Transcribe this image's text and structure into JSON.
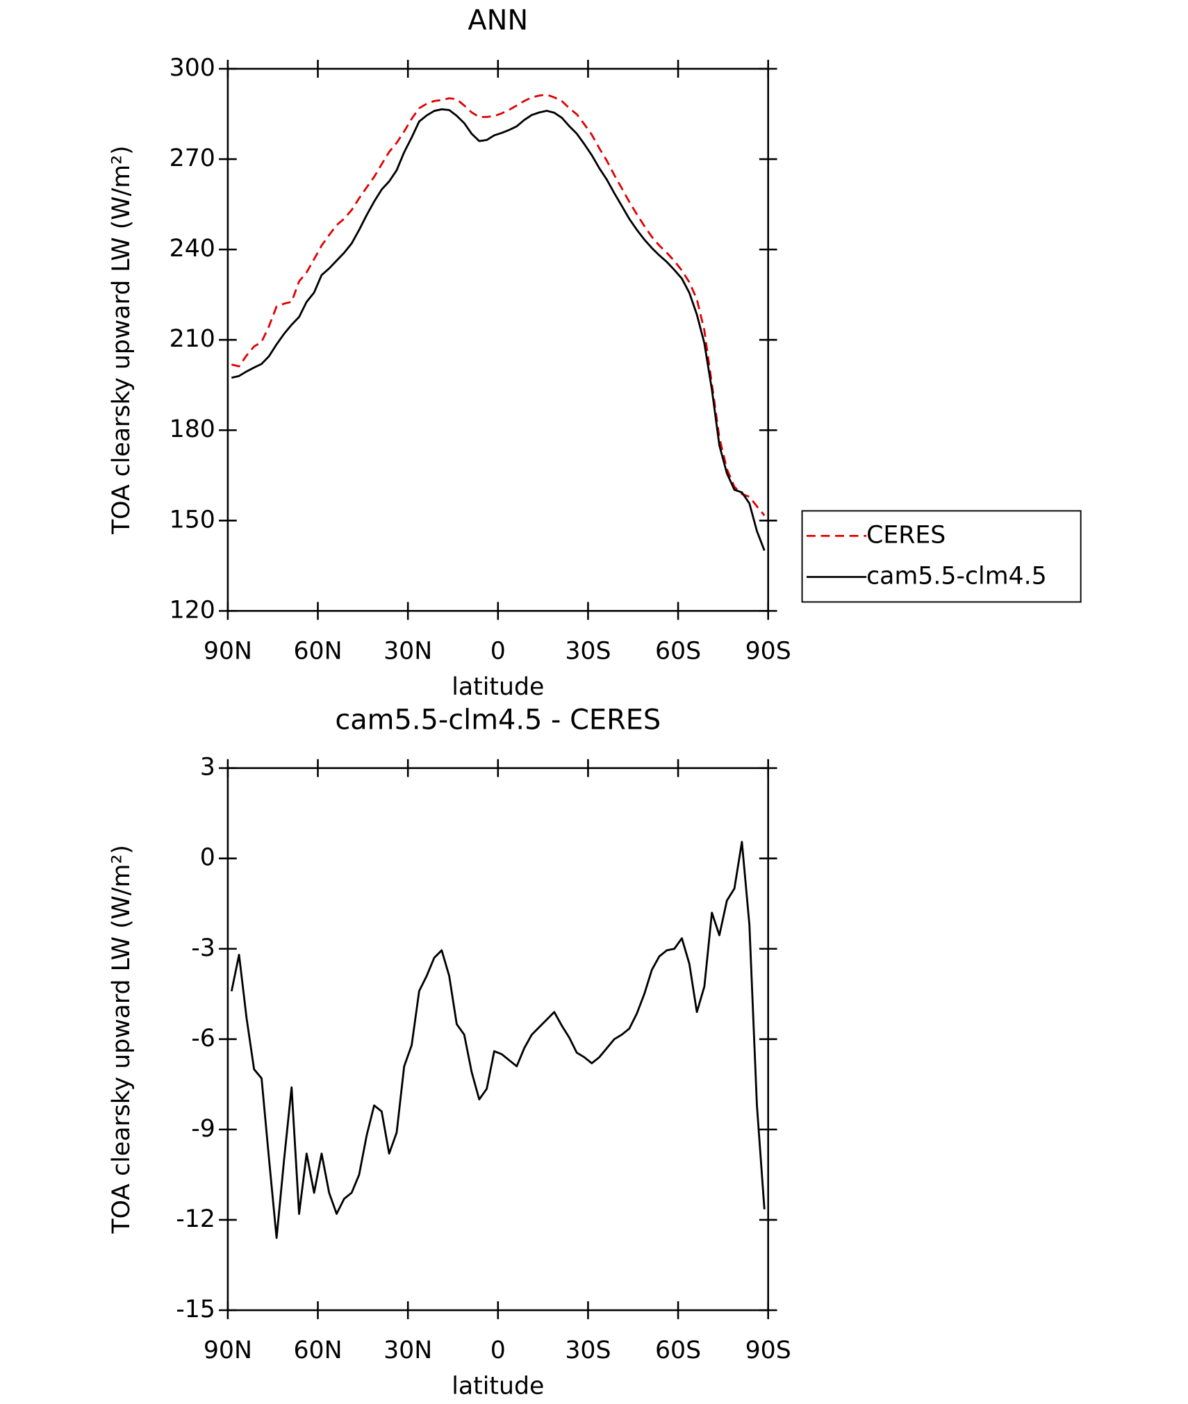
{
  "chart_data": [
    {
      "type": "line",
      "title": "ANN",
      "x_label": "latitude",
      "y_label": "TOA clearsky upward LW (W/m²)",
      "x": [
        88.75,
        86.25,
        83.75,
        81.25,
        78.75,
        76.25,
        73.75,
        71.25,
        68.75,
        66.25,
        63.75,
        61.25,
        58.75,
        56.25,
        53.75,
        51.25,
        48.75,
        46.25,
        43.75,
        41.25,
        38.75,
        36.25,
        33.75,
        31.25,
        28.75,
        26.25,
        23.75,
        21.25,
        18.75,
        16.25,
        13.75,
        11.25,
        8.75,
        6.25,
        3.75,
        1.25,
        -1.25,
        -3.75,
        -6.25,
        -8.75,
        -11.25,
        -13.75,
        -16.25,
        -18.75,
        -21.25,
        -23.75,
        -26.25,
        -28.75,
        -31.25,
        -33.75,
        -36.25,
        -38.75,
        -41.25,
        -43.75,
        -46.25,
        -48.75,
        -51.25,
        -53.75,
        -56.25,
        -58.75,
        -61.25,
        -63.75,
        -66.25,
        -68.75,
        -71.25,
        -73.75,
        -76.25,
        -78.75,
        -81.25,
        -83.75,
        -86.25,
        -88.75
      ],
      "xlim": [
        90,
        -90
      ],
      "xticks": [
        {
          "value": 90,
          "label": "90N"
        },
        {
          "value": 60,
          "label": "60N"
        },
        {
          "value": 30,
          "label": "30N"
        },
        0,
        {
          "value": -30,
          "label": "30S"
        },
        {
          "value": -60,
          "label": "60S"
        },
        {
          "value": -90,
          "label": "90S"
        }
      ],
      "ylim": [
        120,
        300
      ],
      "yticks": [
        120,
        150,
        180,
        210,
        240,
        270,
        300
      ],
      "legend": "right",
      "series": [
        {
          "name": "CERES",
          "color": "#e00000",
          "style": "dashed",
          "values": [
            201.8,
            201.2,
            204.8,
            207.8,
            209.3,
            214.6,
            221.1,
            222,
            222.6,
            229.4,
            232.4,
            236.8,
            241.3,
            244.8,
            248.1,
            250.2,
            253.1,
            257,
            260.6,
            264.1,
            268.3,
            272.4,
            275.4,
            279.2,
            283.4,
            286.9,
            288.4,
            289.3,
            289.6,
            290.2,
            289.9,
            287.8,
            285.5,
            284,
            284,
            284.3,
            285.2,
            286.4,
            287.8,
            289.3,
            290.5,
            291.1,
            291.4,
            290.5,
            289.3,
            286.9,
            284.9,
            281.6,
            278.1,
            273.6,
            269.5,
            264.7,
            260.3,
            255.8,
            251.7,
            247.8,
            244.2,
            241.3,
            238.9,
            236.2,
            233,
            229.1,
            223.5,
            213.1,
            195.3,
            177.5,
            167.1,
            161.2,
            158.8,
            157.9,
            154.7,
            151.7
          ]
        },
        {
          "name": "cam5.5-clm4.5",
          "color": "#000000",
          "style": "solid",
          "values": [
            197.4,
            198,
            199.5,
            200.8,
            202,
            204.6,
            208.5,
            212,
            215,
            217.6,
            222.6,
            225.7,
            231.5,
            233.7,
            236.3,
            238.9,
            242,
            246.5,
            251.4,
            255.9,
            259.9,
            262.6,
            266.3,
            272.3,
            277.2,
            282.5,
            284.5,
            286,
            286.55,
            286.3,
            284.4,
            281.95,
            278.4,
            276,
            276.35,
            277.9,
            278.7,
            279.7,
            280.9,
            283,
            284.65,
            285.5,
            286.05,
            285.4,
            283.75,
            280.95,
            278.45,
            275,
            271.3,
            267,
            263.2,
            258.7,
            254.45,
            250.15,
            246.55,
            243.3,
            240.5,
            238.05,
            235.85,
            233.2,
            230.35,
            225.6,
            218.4,
            208.85,
            193.5,
            174.95,
            165.7,
            160.2,
            159.35,
            155.7,
            146.5,
            140.05
          ]
        }
      ]
    },
    {
      "type": "line",
      "title": "cam5.5-clm4.5 - CERES",
      "x_label": "latitude",
      "y_label": "TOA clearsky upward LW (W/m²)",
      "x": [
        88.75,
        86.25,
        83.75,
        81.25,
        78.75,
        76.25,
        73.75,
        71.25,
        68.75,
        66.25,
        63.75,
        61.25,
        58.75,
        56.25,
        53.75,
        51.25,
        48.75,
        46.25,
        43.75,
        41.25,
        38.75,
        36.25,
        33.75,
        31.25,
        28.75,
        26.25,
        23.75,
        21.25,
        18.75,
        16.25,
        13.75,
        11.25,
        8.75,
        6.25,
        3.75,
        1.25,
        -1.25,
        -3.75,
        -6.25,
        -8.75,
        -11.25,
        -13.75,
        -16.25,
        -18.75,
        -21.25,
        -23.75,
        -26.25,
        -28.75,
        -31.25,
        -33.75,
        -36.25,
        -38.75,
        -41.25,
        -43.75,
        -46.25,
        -48.75,
        -51.25,
        -53.75,
        -56.25,
        -58.75,
        -61.25,
        -63.75,
        -66.25,
        -68.75,
        -71.25,
        -73.75,
        -76.25,
        -78.75,
        -81.25,
        -83.75,
        -86.25,
        -88.75
      ],
      "xlim": [
        90,
        -90
      ],
      "xticks": [
        {
          "value": 90,
          "label": "90N"
        },
        {
          "value": 60,
          "label": "60N"
        },
        {
          "value": 30,
          "label": "30N"
        },
        0,
        {
          "value": -30,
          "label": "30S"
        },
        {
          "value": -60,
          "label": "60S"
        },
        {
          "value": -90,
          "label": "90S"
        }
      ],
      "ylim": [
        -15,
        3
      ],
      "yticks": [
        -15,
        -12,
        -9,
        -6,
        -3,
        0,
        3
      ],
      "series": [
        {
          "color": "#000000",
          "style": "solid",
          "values": [
            -4.41,
            -3.2,
            -5.3,
            -7,
            -7.3,
            -10,
            -12.6,
            -10,
            -7.6,
            -11.8,
            -9.8,
            -11.1,
            -9.8,
            -11.1,
            -11.8,
            -11.3,
            -11.1,
            -10.5,
            -9.2,
            -8.2,
            -8.4,
            -9.8,
            -9.1,
            -6.9,
            -6.2,
            -4.4,
            -3.9,
            -3.3,
            -3.05,
            -3.9,
            -5.5,
            -5.85,
            -7.1,
            -8,
            -7.65,
            -6.4,
            -6.5,
            -6.7,
            -6.9,
            -6.3,
            -5.85,
            -5.6,
            -5.35,
            -5.1,
            -5.55,
            -5.95,
            -6.45,
            -6.6,
            -6.8,
            -6.6,
            -6.3,
            -6,
            -5.85,
            -5.65,
            -5.15,
            -4.5,
            -3.7,
            -3.25,
            -3.05,
            -3,
            -2.65,
            -3.5,
            -5.1,
            -4.25,
            -1.8,
            -2.55,
            -1.4,
            -1,
            0.55,
            -2.2,
            -8.2,
            -11.65
          ]
        }
      ]
    }
  ]
}
